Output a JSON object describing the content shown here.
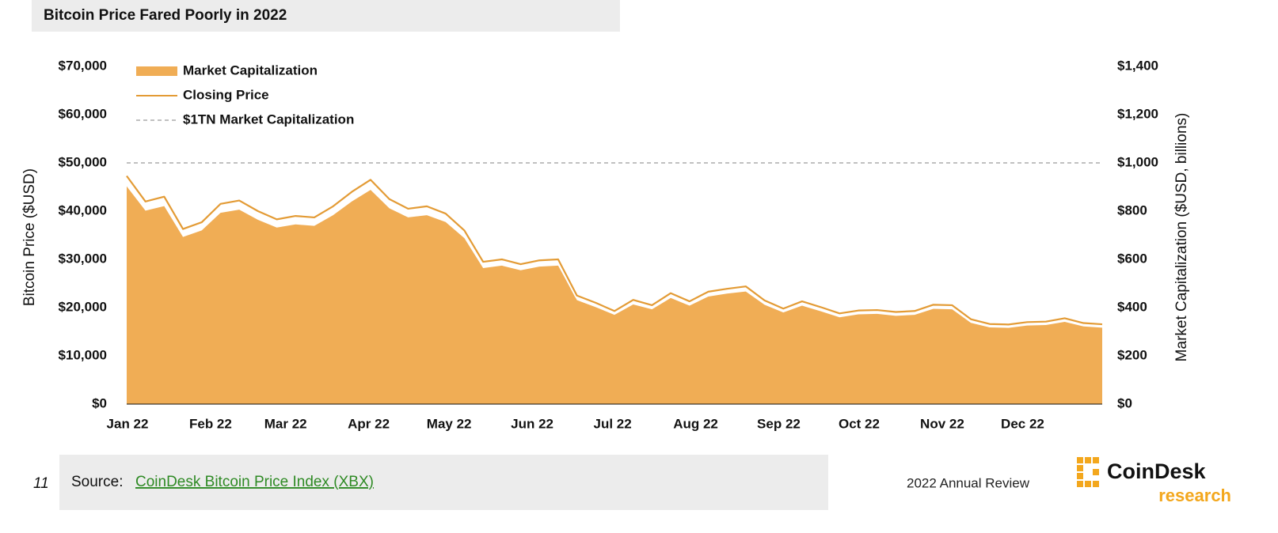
{
  "chart_data": {
    "type": "line",
    "title": "Bitcoin Price Fared Poorly in 2022",
    "y_label": "Bitcoin Price ($USD)",
    "y2_label": "Market Capitalization ($USD, billions)",
    "x": [
      0,
      7,
      14,
      21,
      28,
      35,
      42,
      49,
      56,
      63,
      70,
      77,
      84,
      91,
      98,
      105,
      112,
      119,
      126,
      133,
      140,
      147,
      154,
      161,
      168,
      175,
      182,
      189,
      196,
      203,
      210,
      217,
      224,
      231,
      238,
      245,
      252,
      259,
      266,
      273,
      280,
      287,
      294,
      301,
      308,
      315,
      322,
      329,
      336,
      343,
      350,
      357,
      364
    ],
    "xlim": [
      0,
      364
    ],
    "xticks": [
      {
        "value": 0,
        "label": "Jan 22"
      },
      {
        "value": 31,
        "label": "Feb 22"
      },
      {
        "value": 59,
        "label": "Mar 22"
      },
      {
        "value": 90,
        "label": "Apr 22"
      },
      {
        "value": 120,
        "label": "May 22"
      },
      {
        "value": 151,
        "label": "Jun 22"
      },
      {
        "value": 181,
        "label": "Jul 22"
      },
      {
        "value": 212,
        "label": "Aug 22"
      },
      {
        "value": 243,
        "label": "Sep 22"
      },
      {
        "value": 273,
        "label": "Oct 22"
      },
      {
        "value": 304,
        "label": "Nov 22"
      },
      {
        "value": 334,
        "label": "Dec 22"
      }
    ],
    "ylim": [
      0,
      70000
    ],
    "yticks": [
      {
        "value": 0,
        "label": "$0"
      },
      {
        "value": 10000,
        "label": "$10,000"
      },
      {
        "value": 20000,
        "label": "$20,000"
      },
      {
        "value": 30000,
        "label": "$30,000"
      },
      {
        "value": 40000,
        "label": "$40,000"
      },
      {
        "value": 50000,
        "label": "$50,000"
      },
      {
        "value": 60000,
        "label": "$60,000"
      },
      {
        "value": 70000,
        "label": "$70,000"
      }
    ],
    "y2lim": [
      0,
      1400
    ],
    "y2ticks": [
      {
        "value": 0,
        "label": "$0"
      },
      {
        "value": 200,
        "label": "$200"
      },
      {
        "value": 400,
        "label": "$400"
      },
      {
        "value": 600,
        "label": "$600"
      },
      {
        "value": 800,
        "label": "$800"
      },
      {
        "value": 1000,
        "label": "$1,000"
      },
      {
        "value": 1200,
        "label": "$1,200"
      },
      {
        "value": 1400,
        "label": "$1,400"
      }
    ],
    "series": [
      {
        "name": "Market Capitalization",
        "type": "area",
        "axis": "y2",
        "color": "#f0ad55",
        "values": [
          903,
          802,
          821,
          693,
          720,
          793,
          806,
          764,
          732,
          745,
          739,
          783,
          840,
          888,
          812,
          774,
          783,
          755,
          688,
          564,
          574,
          555,
          570,
          574,
          431,
          402,
          370,
          413,
          393,
          440,
          408,
          446,
          458,
          467,
          412,
          380,
          408,
          385,
          360,
          372,
          374,
          366,
          370,
          395,
          393,
          337,
          318,
          316,
          326,
          328,
          341,
          322,
          317
        ]
      },
      {
        "name": "Closing Price",
        "type": "line",
        "color": "#e39b35",
        "values": [
          47300,
          42000,
          43000,
          36300,
          37700,
          41500,
          42200,
          40000,
          38300,
          39000,
          38700,
          41000,
          44000,
          46500,
          42500,
          40500,
          41000,
          39500,
          36000,
          29500,
          30000,
          29000,
          29800,
          30000,
          22500,
          21000,
          19300,
          21600,
          20500,
          23000,
          21300,
          23300,
          23900,
          24400,
          21500,
          19800,
          21300,
          20100,
          18800,
          19400,
          19500,
          19100,
          19300,
          20600,
          20500,
          17600,
          16600,
          16500,
          17000,
          17100,
          17800,
          16800,
          16550
        ]
      }
    ],
    "reference_lines": [
      {
        "name": "$1TN Market Capitalization",
        "value": 1000,
        "axis": "y2",
        "color": "#9a9a9a"
      }
    ]
  },
  "footer": {
    "page": "11",
    "source_prefix": "Source:",
    "source_link": "CoinDesk Bitcoin Price Index (XBX)",
    "report": "2022 Annual Review",
    "brand": "CoinDesk",
    "brand_sub": "research"
  }
}
